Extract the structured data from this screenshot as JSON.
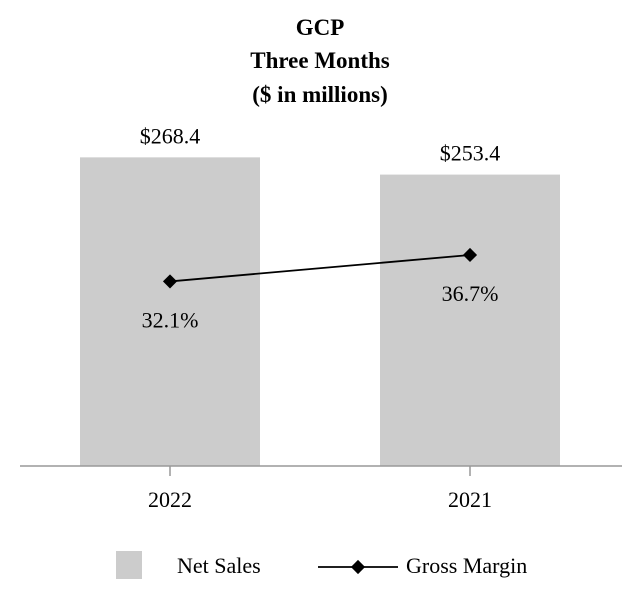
{
  "chart_data": {
    "type": "bar",
    "title": [
      "GCP",
      "Three Months",
      "($ in millions)"
    ],
    "categories": [
      "2022",
      "2021"
    ],
    "series": [
      {
        "name": "Net Sales",
        "kind": "bar",
        "values": [
          268.4,
          253.4
        ],
        "labels": [
          "$268.4",
          "$253.4"
        ],
        "color": "#cccccc"
      },
      {
        "name": "Gross Margin",
        "kind": "line",
        "values": [
          32.1,
          36.7
        ],
        "labels": [
          "32.1%",
          "36.7%"
        ],
        "color": "#000000"
      }
    ],
    "bar_ylim": [
      0,
      300
    ],
    "line_ylim": [
      0,
      60
    ],
    "legend_position": "bottom",
    "grid": false
  }
}
